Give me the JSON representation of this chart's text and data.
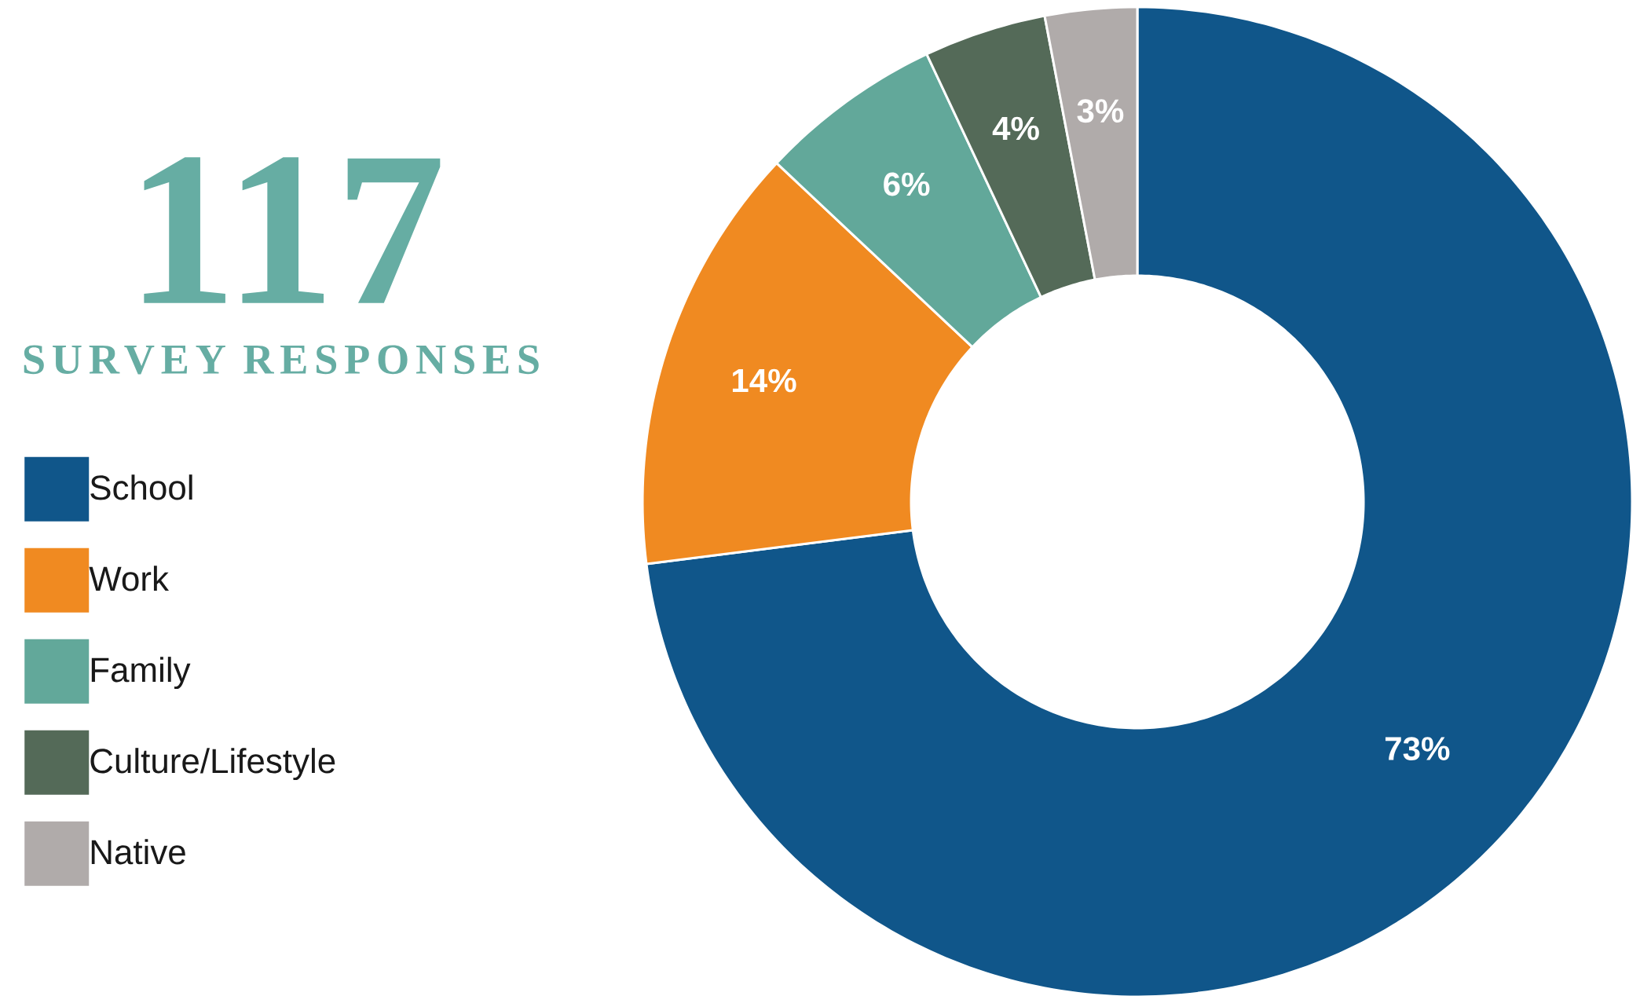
{
  "chart_data": {
    "type": "donut",
    "title": "117",
    "subtitle": "SURVEY RESPONSES",
    "categories": [
      "School",
      "Work",
      "Family",
      "Culture/Lifestyle",
      "Native"
    ],
    "values": [
      73,
      14,
      6,
      4,
      3
    ],
    "value_labels": [
      "73%",
      "14%",
      "6%",
      "4%",
      "3%"
    ],
    "colors": [
      "#10568a",
      "#f08a21",
      "#62a89a",
      "#546a58",
      "#b0abaa"
    ],
    "legend": "left"
  }
}
